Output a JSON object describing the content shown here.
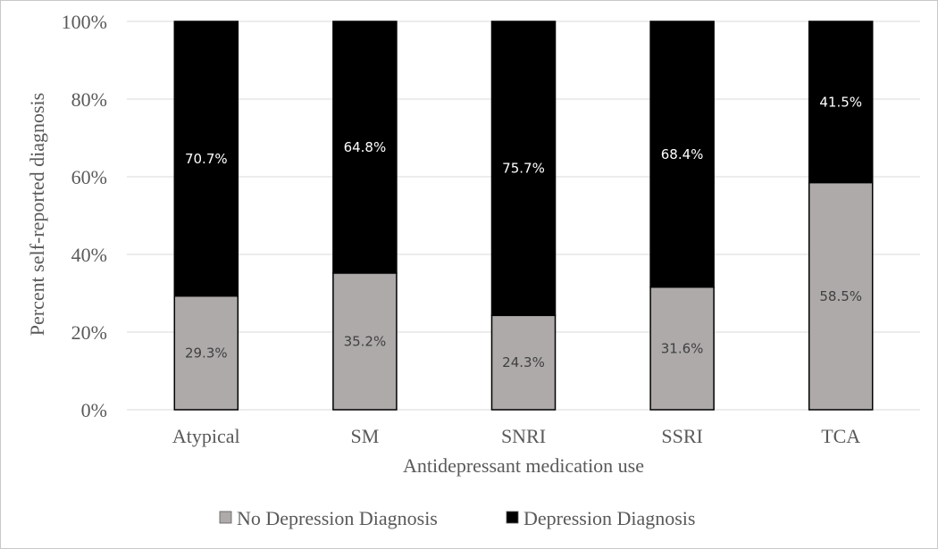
{
  "chart_data": {
    "type": "bar",
    "stacked": true,
    "title": "",
    "xlabel": "Antidepressant medication use",
    "ylabel": "Percent self-reported diagnosis",
    "ylim": [
      0,
      100
    ],
    "yticks": [
      0,
      20,
      40,
      60,
      80,
      100
    ],
    "ytick_labels": [
      "0%",
      "20%",
      "40%",
      "60%",
      "80%",
      "100%"
    ],
    "grid": true,
    "legend_position": "bottom",
    "categories": [
      "Atypical",
      "SM",
      "SNRI",
      "SSRI",
      "TCA"
    ],
    "series": [
      {
        "name": "No Depression Diagnosis",
        "color": "#aeaaaa",
        "label_color": "#404040",
        "values": [
          29.3,
          35.2,
          24.3,
          31.6,
          58.5
        ],
        "labels": [
          "29.3%",
          "35.2%",
          "24.3%",
          "31.6%",
          "58.5%"
        ]
      },
      {
        "name": "Depression Diagnosis",
        "color": "#000000",
        "label_color": "#ffffff",
        "values": [
          70.7,
          64.8,
          75.7,
          68.4,
          41.5
        ],
        "labels": [
          "70.7%",
          "64.8%",
          "75.7%",
          "68.4%",
          "41.5%"
        ]
      }
    ]
  }
}
